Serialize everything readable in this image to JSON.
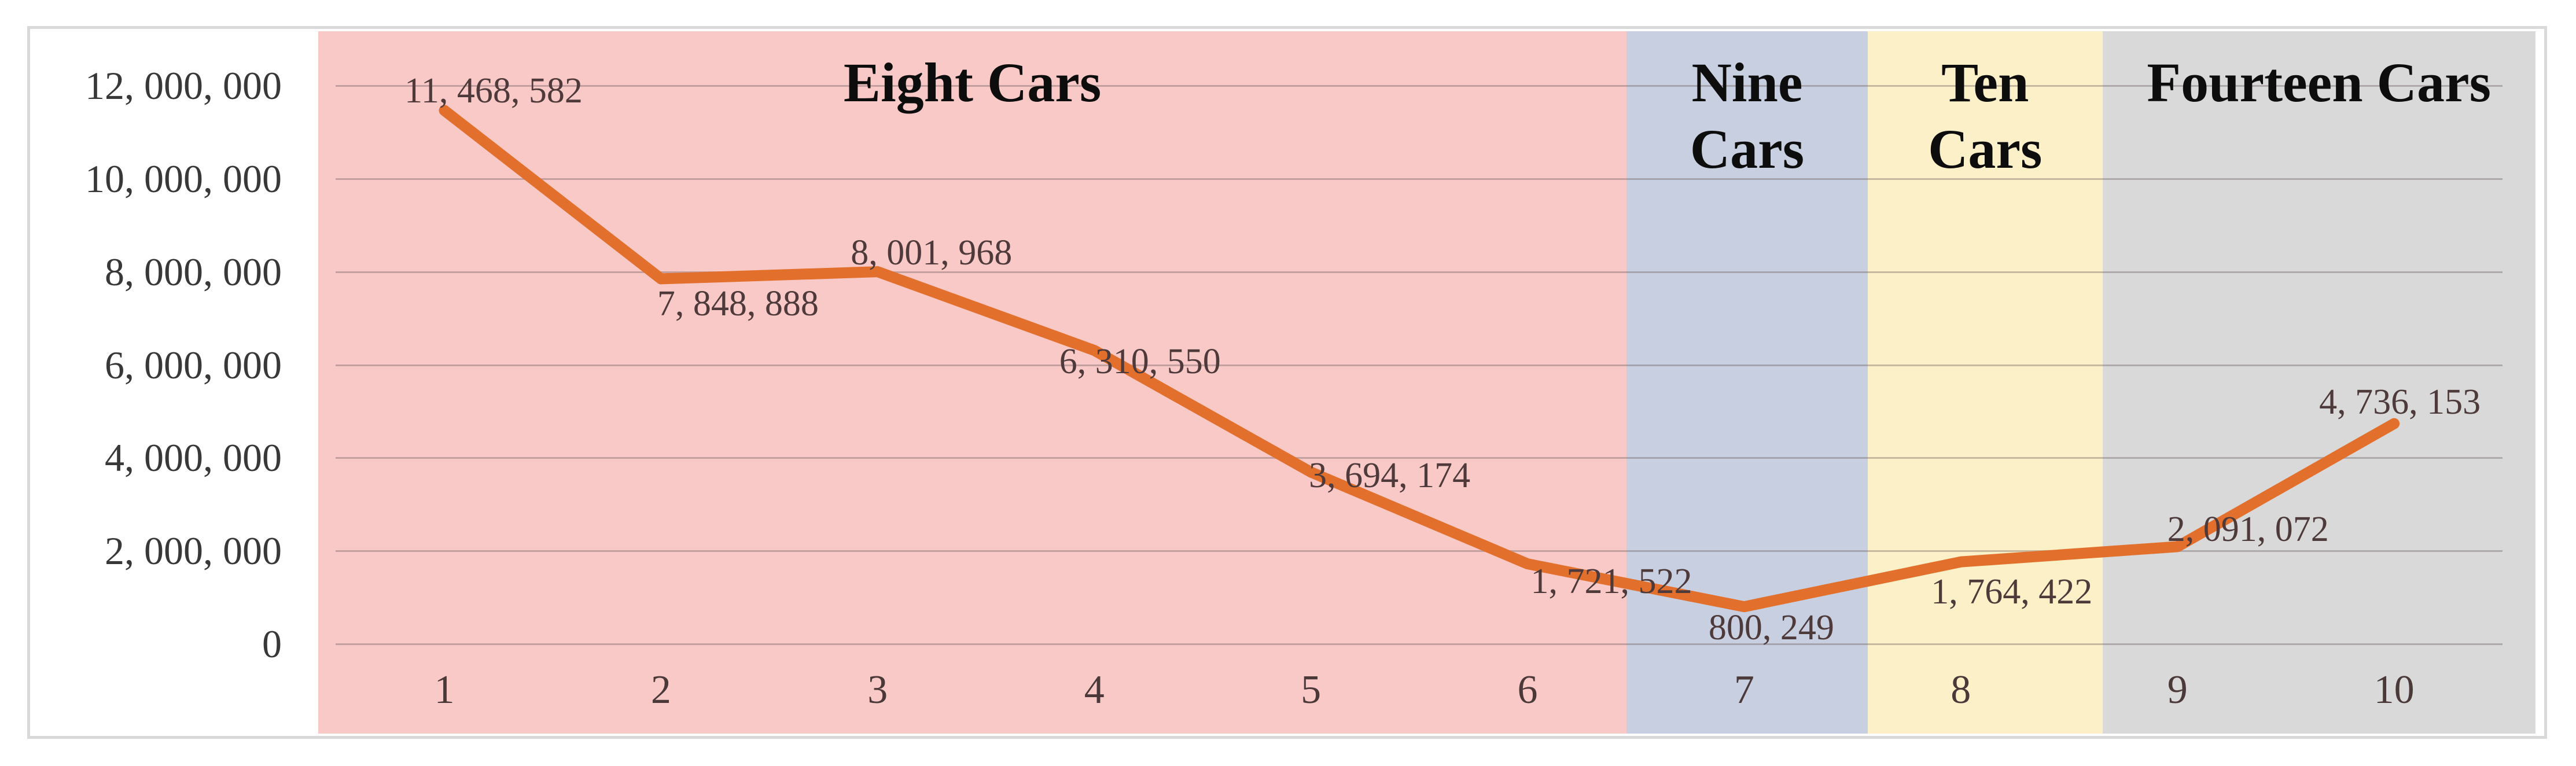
{
  "chart_data": {
    "type": "line",
    "title": "",
    "categories": [
      "1",
      "2",
      "3",
      "4",
      "5",
      "6",
      "7",
      "8",
      "9",
      "10"
    ],
    "series": [
      {
        "name": "cars-series",
        "values": [
          11468582,
          7848888,
          8001968,
          6310550,
          3694174,
          1721522,
          800249,
          1764422,
          2091072,
          4736153
        ]
      }
    ],
    "data_labels": [
      "11, 468, 582",
      "7, 848, 888",
      "8, 001, 968",
      "6, 310, 550",
      "3, 694, 174",
      "1, 721, 522",
      "800, 249",
      "1, 764, 422",
      "2, 091, 072",
      "4, 736, 153"
    ],
    "x_axis": {
      "tick_labels": [
        "1",
        "2",
        "3",
        "4",
        "5",
        "6",
        "7",
        "8",
        "9",
        "10"
      ]
    },
    "y_axis": {
      "min": 0,
      "max": 12000000,
      "tick_interval": 2000000,
      "tick_labels": [
        "12, 000, 000",
        "10, 000, 000",
        "8, 000, 000",
        "6, 000, 000",
        "4, 000, 000",
        "2, 000, 000",
        "0"
      ]
    },
    "regions": [
      {
        "label": "Eight Cars",
        "label_lines": [
          "Eight Cars"
        ],
        "from_category": 0.418,
        "to_category": 6.457,
        "color": "#f9c9c8"
      },
      {
        "label": "Nine Cars",
        "label_lines": [
          "Nine",
          "Cars"
        ],
        "from_category": 6.457,
        "to_category": 7.57,
        "color": "#c8cfe0"
      },
      {
        "label": "Ten Cars",
        "label_lines": [
          "Ten",
          "Cars"
        ],
        "from_category": 7.57,
        "to_category": 8.654,
        "color": "#fcf0c9"
      },
      {
        "label": "Fourteen Cars",
        "label_lines": [
          "Fourteen Cars"
        ],
        "from_category": 8.654,
        "to_category": 10.652,
        "color": "#d9d9d9"
      }
    ],
    "colors": {
      "line": "#e2702c",
      "chart_border": "#d9d9d9",
      "background": "#ffffff"
    },
    "grid": true,
    "legend": false
  }
}
